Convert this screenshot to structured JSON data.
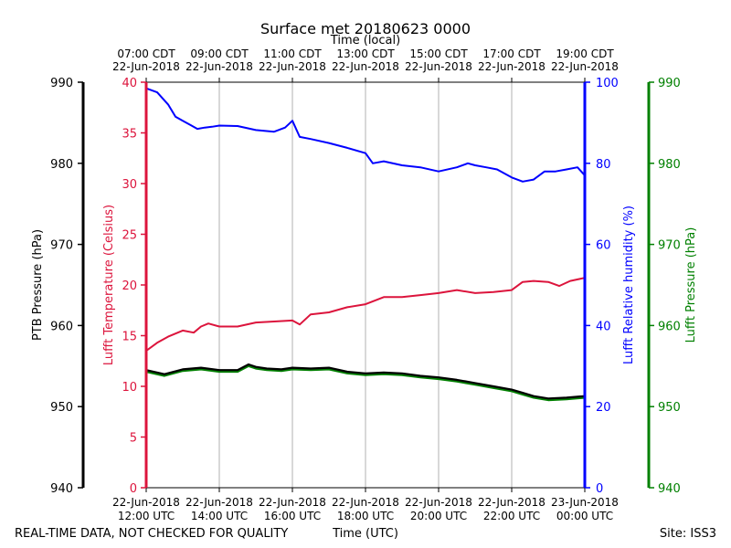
{
  "chart_data": {
    "type": "line",
    "title": "Surface met 20180623 0000",
    "top_axis": {
      "label": "Time (local)",
      "ticks": [
        {
          "time": "07:00 CDT",
          "date": "22-Jun-2018"
        },
        {
          "time": "09:00 CDT",
          "date": "22-Jun-2018"
        },
        {
          "time": "11:00 CDT",
          "date": "22-Jun-2018"
        },
        {
          "time": "13:00 CDT",
          "date": "22-Jun-2018"
        },
        {
          "time": "15:00 CDT",
          "date": "22-Jun-2018"
        },
        {
          "time": "17:00 CDT",
          "date": "22-Jun-2018"
        },
        {
          "time": "19:00 CDT",
          "date": "22-Jun-2018"
        }
      ]
    },
    "bottom_axis": {
      "label": "Time (UTC)",
      "ticks": [
        {
          "date": "22-Jun-2018",
          "time": "12:00 UTC"
        },
        {
          "date": "22-Jun-2018",
          "time": "14:00 UTC"
        },
        {
          "date": "22-Jun-2018",
          "time": "16:00 UTC"
        },
        {
          "date": "22-Jun-2018",
          "time": "18:00 UTC"
        },
        {
          "date": "22-Jun-2018",
          "time": "20:00 UTC"
        },
        {
          "date": "22-Jun-2018",
          "time": "22:00 UTC"
        },
        {
          "date": "23-Jun-2018",
          "time": "00:00 UTC"
        }
      ]
    },
    "xlim_hours": [
      0,
      12
    ],
    "grid": true,
    "axes": {
      "ptb": {
        "label": "PTB Pressure (hPa)",
        "color": "#000000",
        "ylim": [
          940,
          990
        ],
        "ticks": [
          940,
          950,
          960,
          970,
          980,
          990
        ]
      },
      "temp": {
        "label": "Lufft Temperature (Celsius)",
        "color": "#dc143c",
        "ylim": [
          0,
          40
        ],
        "ticks": [
          0,
          5,
          10,
          15,
          20,
          25,
          30,
          35,
          40
        ]
      },
      "rh": {
        "label": "Lufft Relative humidity (%)",
        "color": "#0000ff",
        "ylim": [
          0,
          100
        ],
        "ticks": [
          0,
          20,
          40,
          60,
          80,
          100
        ]
      },
      "lufft_p": {
        "label": "Lufft Pressure (hPa)",
        "color": "#008000",
        "ylim": [
          940,
          990
        ],
        "ticks": [
          940,
          950,
          960,
          970,
          980,
          990
        ]
      }
    },
    "series": [
      {
        "name": "Lufft Temperature",
        "axis": "temp",
        "color": "#dc143c",
        "x": [
          0,
          0.3,
          0.6,
          1.0,
          1.3,
          1.5,
          1.7,
          2.0,
          2.5,
          3.0,
          3.5,
          4.0,
          4.2,
          4.5,
          5.0,
          5.5,
          6.0,
          6.5,
          7.0,
          7.5,
          8.0,
          8.5,
          9.0,
          9.5,
          10.0,
          10.3,
          10.6,
          11.0,
          11.3,
          11.6,
          12.0
        ],
        "values": [
          13.5,
          14.3,
          14.9,
          15.5,
          15.3,
          15.9,
          16.2,
          15.9,
          15.9,
          16.3,
          16.4,
          16.5,
          16.1,
          17.1,
          17.3,
          17.8,
          18.1,
          18.8,
          18.8,
          19.0,
          19.2,
          19.5,
          19.2,
          19.3,
          19.5,
          20.3,
          20.4,
          20.3,
          19.9,
          20.4,
          20.7
        ]
      },
      {
        "name": "Lufft Relative humidity",
        "axis": "rh",
        "color": "#0000ff",
        "x": [
          0,
          0.3,
          0.6,
          0.8,
          1.0,
          1.2,
          1.4,
          1.6,
          1.8,
          2.0,
          2.5,
          3.0,
          3.5,
          3.8,
          4.0,
          4.2,
          4.5,
          5.0,
          5.5,
          6.0,
          6.2,
          6.5,
          7.0,
          7.5,
          8.0,
          8.5,
          8.8,
          9.0,
          9.3,
          9.6,
          10.0,
          10.3,
          10.6,
          10.9,
          11.2,
          11.5,
          11.8,
          12.0
        ],
        "values": [
          98.5,
          97.5,
          94.5,
          91.5,
          90.5,
          89.5,
          88.5,
          88.8,
          89.0,
          89.3,
          89.2,
          88.2,
          87.8,
          88.8,
          90.5,
          86.5,
          86.0,
          85.0,
          83.8,
          82.5,
          80.0,
          80.5,
          79.5,
          79.0,
          78.0,
          79.0,
          80.0,
          79.5,
          79.0,
          78.5,
          76.5,
          75.5,
          76.0,
          78.0,
          78.0,
          78.5,
          79.0,
          77.0
        ]
      },
      {
        "name": "PTB Pressure",
        "axis": "ptb",
        "color": "#000000",
        "x": [
          0,
          0.5,
          1.0,
          1.5,
          2.0,
          2.5,
          2.8,
          3.0,
          3.3,
          3.7,
          4.0,
          4.5,
          5.0,
          5.5,
          6.0,
          6.5,
          7.0,
          7.5,
          8.0,
          8.5,
          9.0,
          9.5,
          10.0,
          10.3,
          10.6,
          11.0,
          11.5,
          12.0
        ],
        "values": [
          954.5,
          954.0,
          954.6,
          954.8,
          954.5,
          954.5,
          955.2,
          954.9,
          954.7,
          954.6,
          954.8,
          954.7,
          954.8,
          954.3,
          954.1,
          954.2,
          954.1,
          953.8,
          953.6,
          953.3,
          952.9,
          952.5,
          952.1,
          951.7,
          951.3,
          951.0,
          951.1,
          951.3
        ]
      },
      {
        "name": "Lufft Pressure",
        "axis": "lufft_p",
        "color": "#008000",
        "x": [
          0,
          0.5,
          1.0,
          1.5,
          2.0,
          2.5,
          2.8,
          3.0,
          3.3,
          3.7,
          4.0,
          4.5,
          5.0,
          5.5,
          6.0,
          6.5,
          7.0,
          7.5,
          8.0,
          8.5,
          9.0,
          9.5,
          10.0,
          10.3,
          10.6,
          11.0,
          11.5,
          12.0
        ],
        "values": [
          954.3,
          953.8,
          954.4,
          954.6,
          954.3,
          954.3,
          955.0,
          954.7,
          954.5,
          954.4,
          954.6,
          954.5,
          954.6,
          954.1,
          953.9,
          954.0,
          953.9,
          953.6,
          953.4,
          953.1,
          952.7,
          952.3,
          951.9,
          951.5,
          951.1,
          950.8,
          950.9,
          951.1
        ]
      }
    ]
  },
  "footer": {
    "left": "REAL-TIME DATA, NOT CHECKED FOR QUALITY",
    "center": "Time (UTC)",
    "right": "Site: ISS3"
  }
}
